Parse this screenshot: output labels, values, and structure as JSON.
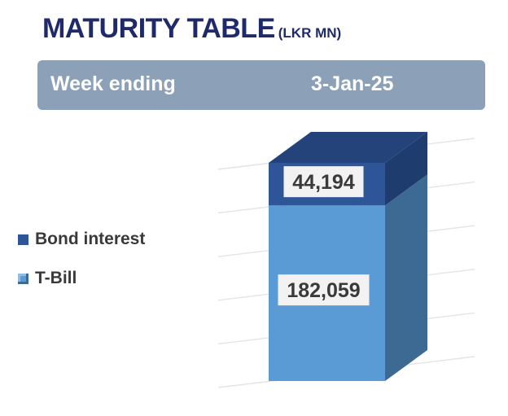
{
  "title": "MATURITY TABLE",
  "title_unit": "(LKR MN)",
  "week": {
    "label": "Week ending",
    "date": "3-Jan-25"
  },
  "colors": {
    "title": "#1f2a6b",
    "week_bar": "#8ca0b8",
    "tbill_front": "#5b9bd5",
    "tbill_side": "#3d6a93",
    "bond_front": "#2e5597",
    "bond_side": "#1f3c6e",
    "bond_top": "#24437a",
    "grid": "#e4e4e4"
  },
  "legend": [
    {
      "name": "Bond interest",
      "color": "#2e5597",
      "icon": "square-icon"
    },
    {
      "name": "T-Bill",
      "color": "#5b9bd5",
      "icon": "bevel-square-icon"
    }
  ],
  "chart_data": {
    "type": "bar",
    "stacked": true,
    "three_d": true,
    "categories": [
      "3-Jan-25"
    ],
    "series": [
      {
        "name": "T-Bill",
        "values": [
          182059
        ],
        "label": "182,059"
      },
      {
        "name": "Bond interest",
        "values": [
          44194
        ],
        "label": "44,194"
      }
    ],
    "ylim": [
      0,
      226253
    ],
    "grid": true,
    "legend_position": "left"
  }
}
